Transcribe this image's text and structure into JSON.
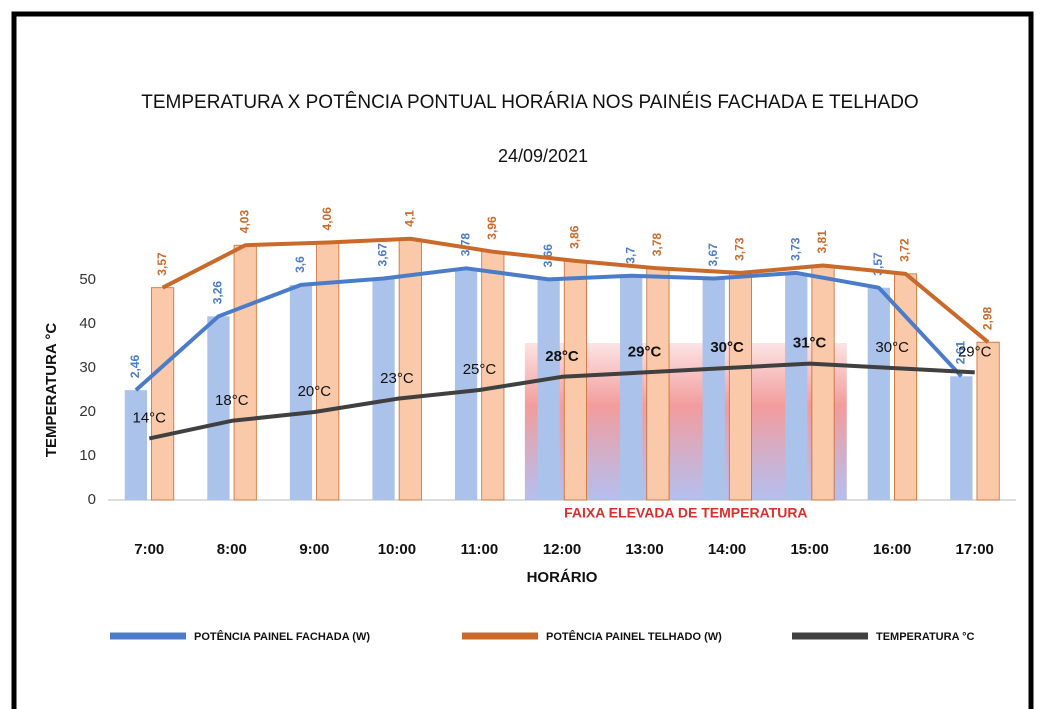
{
  "chart_data": {
    "type": "combo",
    "title": "TEMPERATURA X POTÊNCIA PONTUAL HORÁRIA  NOS PAINÉIS FACHADA E TELHADO",
    "subtitle": "24/09/2021",
    "x_label": "HORÁRIO",
    "y_label": "TEMPERATURA °C",
    "categories": [
      "7:00",
      "8:00",
      "9:00",
      "10:00",
      "11:00",
      "12:00",
      "13:00",
      "14:00",
      "15:00",
      "16:00",
      "17:00"
    ],
    "ylim": [
      0,
      60
    ],
    "yticks": [
      0,
      10,
      20,
      30,
      40,
      50
    ],
    "y2lim": [
      1.27,
      4.13
    ],
    "highlight": {
      "label": "FAIXA ELEVADA DE TEMPERATURA",
      "from": "12:00",
      "to": "15:00"
    },
    "series": [
      {
        "name": "POTÊNCIA PAINEL FACHADA (W)",
        "kind": "bar_line",
        "axis": "y2",
        "color": "#4a7cc9",
        "bar_color": "#abc2ea",
        "values": [
          2.46,
          3.26,
          3.6,
          3.67,
          3.78,
          3.66,
          3.7,
          3.67,
          3.73,
          3.57,
          2.61
        ],
        "value_labels": [
          "2,46",
          "3,26",
          "3,6",
          "3,67",
          "3,78",
          "3,66",
          "3,7",
          "3,67",
          "3,73",
          "3,57",
          "2,61"
        ]
      },
      {
        "name": "POTÊNCIA PAINEL TELHADO (W)",
        "kind": "bar_line",
        "axis": "y2",
        "color": "#c96a2b",
        "bar_color": "#f9c9aa",
        "values": [
          3.57,
          4.03,
          4.06,
          4.1,
          3.96,
          3.86,
          3.78,
          3.73,
          3.81,
          3.72,
          2.98
        ],
        "value_labels": [
          "3,57",
          "4,03",
          "4,06",
          "4,1",
          "3,96",
          "3,86",
          "3,78",
          "3,73",
          "3,81",
          "3,72",
          "2,98"
        ]
      },
      {
        "name": "TEMPERATURA °C",
        "kind": "line",
        "color": "#404040",
        "values": [
          14,
          18,
          20,
          23,
          25,
          28,
          29,
          30,
          31,
          30,
          29
        ],
        "value_labels": [
          "14°C",
          "18°C",
          "20°C",
          "23°C",
          "25°C",
          "28°C",
          "29°C",
          "30°C",
          "31°C",
          "30°C",
          "29°C"
        ]
      }
    ]
  }
}
